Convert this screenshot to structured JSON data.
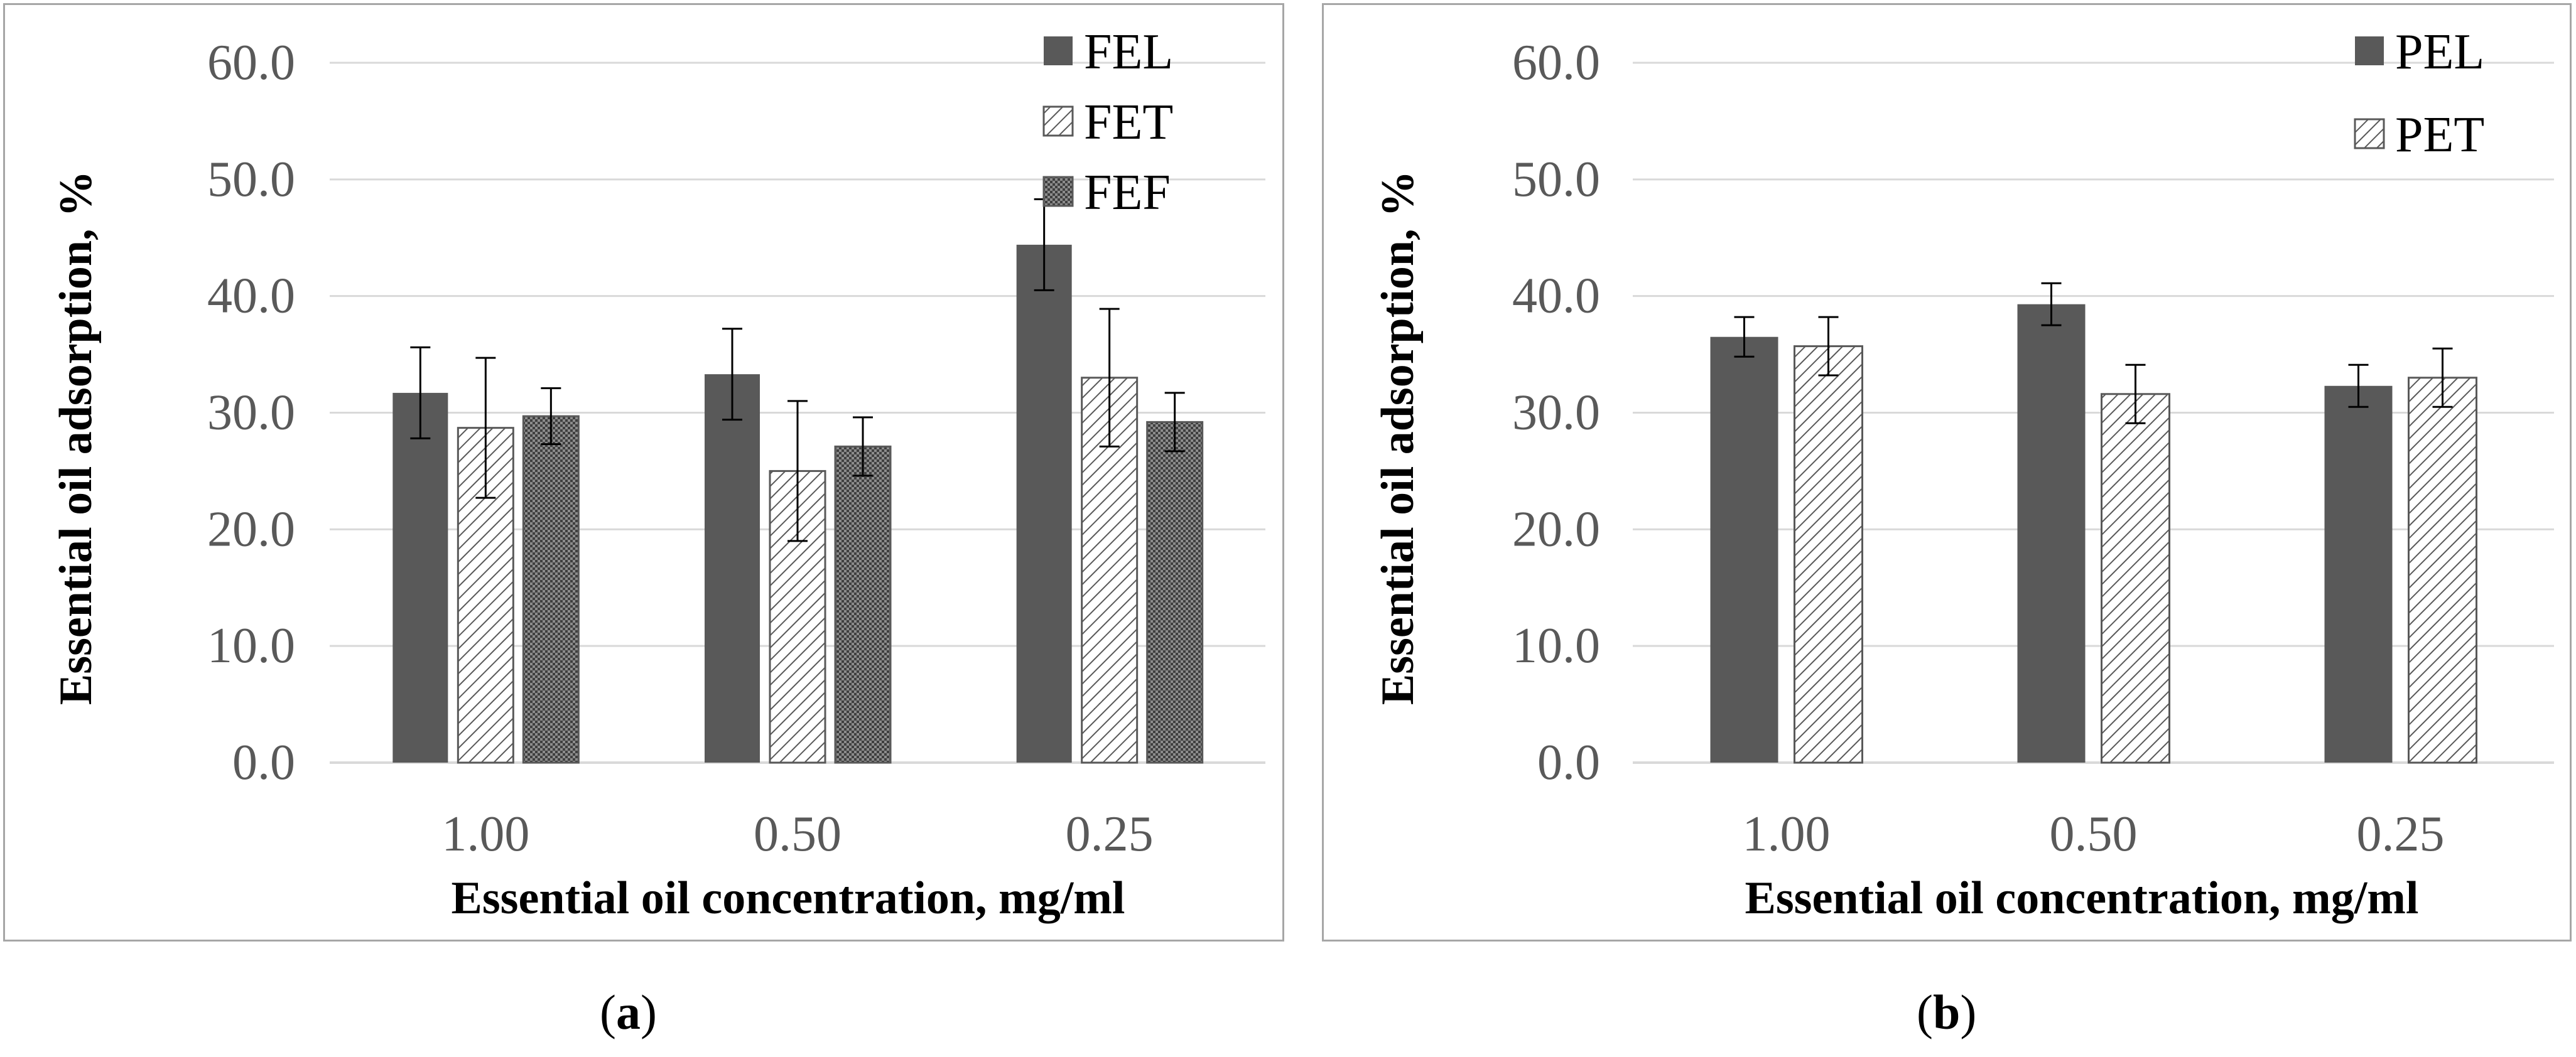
{
  "colors": {
    "solid": "#595959",
    "grid": "#d9d9d9",
    "hatch": "#595959",
    "frame": "#a6a6a6"
  },
  "panels": [
    {
      "tag": "a",
      "label": "a",
      "label_open": "(",
      "label_close": ")"
    },
    {
      "tag": "b",
      "label": "b",
      "label_open": "(",
      "label_close": ")"
    }
  ],
  "chart_data": [
    {
      "type": "bar",
      "categories": [
        "1.00",
        "0.50",
        "0.25"
      ],
      "xlabel": "Essential oil concentration, mg/ml",
      "ylabel": "Essential oil adsorption, %",
      "ylim": [
        0,
        60
      ],
      "yticks": [
        "0.0",
        "10.0",
        "20.0",
        "30.0",
        "40.0",
        "50.0",
        "60.0"
      ],
      "grid": true,
      "legend_position": "top-right",
      "series": [
        {
          "name": "FEL",
          "pattern": "solid",
          "values": [
            31.7,
            33.3,
            44.4
          ],
          "errors": [
            3.9,
            3.9,
            3.9
          ]
        },
        {
          "name": "FET",
          "pattern": "hatch",
          "values": [
            28.7,
            25.0,
            33.0
          ],
          "errors": [
            6.0,
            6.0,
            5.9
          ]
        },
        {
          "name": "FEF",
          "pattern": "dots",
          "values": [
            29.7,
            27.1,
            29.2
          ],
          "errors": [
            2.4,
            2.5,
            2.5
          ]
        }
      ]
    },
    {
      "type": "bar",
      "categories": [
        "1.00",
        "0.50",
        "0.25"
      ],
      "xlabel": "Essential oil concentration, mg/ml",
      "ylabel": "Essential oil adsorption, %",
      "ylim": [
        0,
        60
      ],
      "yticks": [
        "0.0",
        "10.0",
        "20.0",
        "30.0",
        "40.0",
        "50.0",
        "60.0"
      ],
      "grid": true,
      "legend_position": "top-right",
      "series": [
        {
          "name": "PEL",
          "pattern": "solid",
          "values": [
            36.5,
            39.3,
            32.3
          ],
          "errors": [
            1.7,
            1.8,
            1.8
          ]
        },
        {
          "name": "PET",
          "pattern": "hatch",
          "values": [
            35.7,
            31.6,
            33.0
          ],
          "errors": [
            2.5,
            2.5,
            2.5
          ]
        }
      ]
    }
  ]
}
